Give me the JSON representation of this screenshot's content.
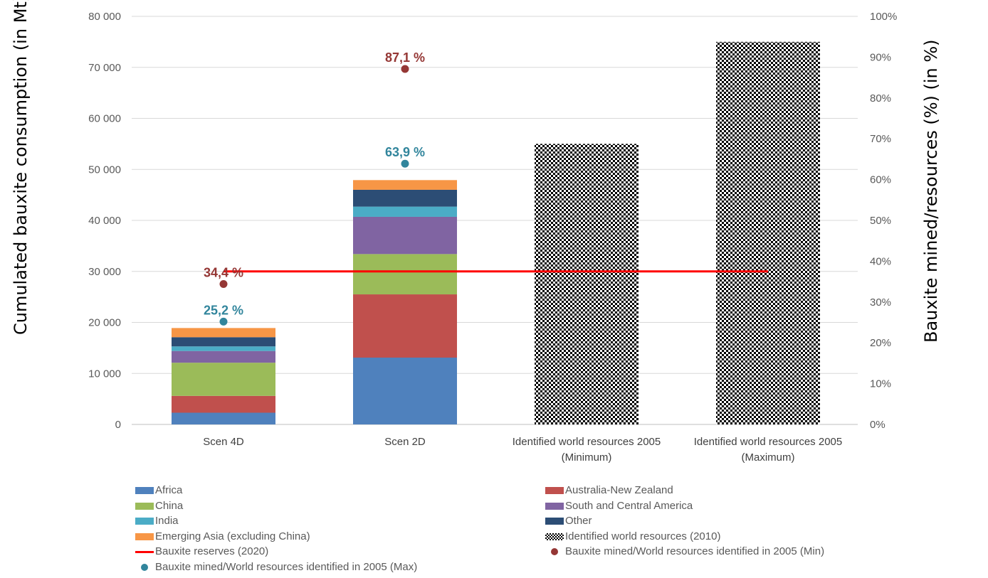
{
  "chart_data": {
    "type": "bar",
    "stacked": true,
    "y_left": {
      "label": "Cumulated bauxite consumption (in Mt)",
      "ylim": [
        0,
        80000
      ],
      "ticks": [
        "0",
        "10 000",
        "20 000",
        "30 000",
        "40 000",
        "50 000",
        "60 000",
        "70 000",
        "80 000"
      ]
    },
    "y_right": {
      "label": "Bauxite mined/resources (%) (in %)",
      "ylim": [
        0,
        100
      ],
      "ticks": [
        "0%",
        "10%",
        "20%",
        "30%",
        "40%",
        "50%",
        "60%",
        "70%",
        "80%",
        "90%",
        "100%"
      ]
    },
    "categories": [
      [
        "Scen 4D"
      ],
      [
        "Scen 2D"
      ],
      [
        "Identified world resources 2005",
        "(Minimum)"
      ],
      [
        "Identified world resources 2005",
        "(Maximum)"
      ]
    ],
    "series": [
      {
        "name": "Africa",
        "color": "#4f81bd",
        "values": [
          2300,
          13100,
          null,
          null
        ]
      },
      {
        "name": "Australia-New Zealand",
        "color": "#c0504d",
        "values": [
          3300,
          12400,
          null,
          null
        ]
      },
      {
        "name": "China",
        "color": "#9bbb59",
        "values": [
          6500,
          7900,
          null,
          null
        ]
      },
      {
        "name": "South and Central America",
        "color": "#8064a2",
        "values": [
          2300,
          7300,
          null,
          null
        ]
      },
      {
        "name": "India",
        "color": "#4bacc6",
        "values": [
          900,
          2000,
          null,
          null
        ]
      },
      {
        "name": "Other",
        "color": "#2c4d75",
        "values": [
          1800,
          3300,
          null,
          null
        ]
      },
      {
        "name": "Emerging Asia (excluding China)",
        "color": "#f79646",
        "values": [
          1800,
          1900,
          null,
          null
        ]
      },
      {
        "name": "Identified world resources (2010)",
        "pattern": "checkerboard",
        "values": [
          null,
          null,
          55000,
          75000
        ]
      }
    ],
    "reserves_line": {
      "name": "Bauxite reserves (2020)",
      "color": "#ff0000",
      "value": 30000
    },
    "points": [
      {
        "name": "Bauxite mined/World resources identified in 2005 (Min)",
        "color": "#953735",
        "values": [
          34.4,
          87.1
        ],
        "labels": [
          "34,4 %",
          "87,1 %"
        ]
      },
      {
        "name": "Bauxite mined/World resources identified in 2005 (Max)",
        "color": "#31859c",
        "values": [
          25.2,
          63.9
        ],
        "labels": [
          "25,2 %",
          "63,9 %"
        ]
      }
    ],
    "legend": [
      {
        "label": "Africa",
        "kind": "box",
        "color": "#4f81bd"
      },
      {
        "label": "Australia-New Zealand",
        "kind": "box",
        "color": "#c0504d"
      },
      {
        "label": "China",
        "kind": "box",
        "color": "#9bbb59"
      },
      {
        "label": "South and Central America",
        "kind": "box",
        "color": "#8064a2"
      },
      {
        "label": "India",
        "kind": "box",
        "color": "#4bacc6"
      },
      {
        "label": "Other",
        "kind": "box",
        "color": "#2c4d75"
      },
      {
        "label": "Emerging Asia (excluding China)",
        "kind": "box",
        "color": "#f79646"
      },
      {
        "label": "Identified world resources (2010)",
        "kind": "check",
        "color": "#000000"
      },
      {
        "label": "Bauxite reserves (2020)",
        "kind": "line",
        "color": "#ff0000"
      },
      {
        "label": "Bauxite mined/World resources identified in 2005 (Min)",
        "kind": "dot",
        "color": "#953735"
      },
      {
        "label": "Bauxite mined/World resources identified in 2005 (Max)",
        "kind": "dot",
        "color": "#31859c"
      }
    ],
    "grid": true,
    "legend_position": "bottom"
  }
}
